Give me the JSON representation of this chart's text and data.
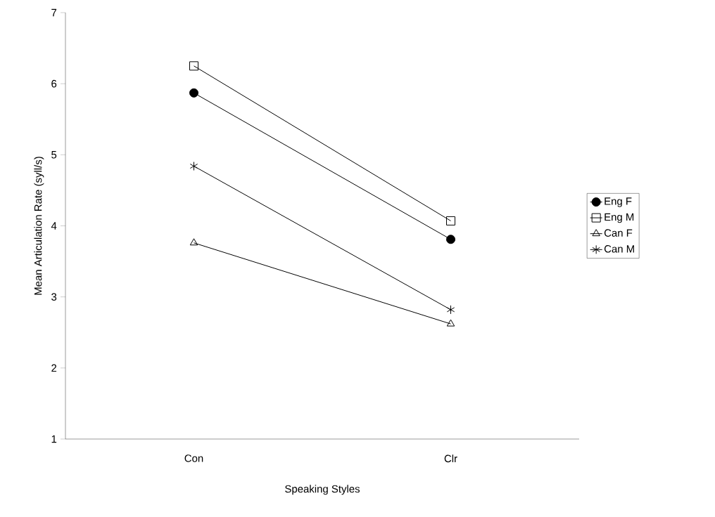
{
  "chart_data": {
    "type": "line",
    "xlabel": "Speaking Styles",
    "ylabel": "Mean Articulation Rate (syll/s)",
    "categories": [
      "Con",
      "Clr"
    ],
    "series": [
      {
        "name": "Eng F",
        "color": "#000000",
        "marker": "circle",
        "values": [
          5.87,
          3.81
        ]
      },
      {
        "name": "Eng M",
        "color": "#000000",
        "marker": "square",
        "values": [
          6.25,
          4.07
        ]
      },
      {
        "name": "Can F",
        "color": "#000000",
        "marker": "triangle",
        "values": [
          3.76,
          2.62
        ]
      },
      {
        "name": "Can M",
        "color": "#000000",
        "marker": "cross",
        "values": [
          4.84,
          2.82
        ]
      }
    ],
    "ylim": [
      1,
      7
    ],
    "yticks": [
      1,
      2,
      3,
      4,
      5,
      6,
      7
    ],
    "legend": "right",
    "grid": false,
    "line_style": "solid"
  }
}
